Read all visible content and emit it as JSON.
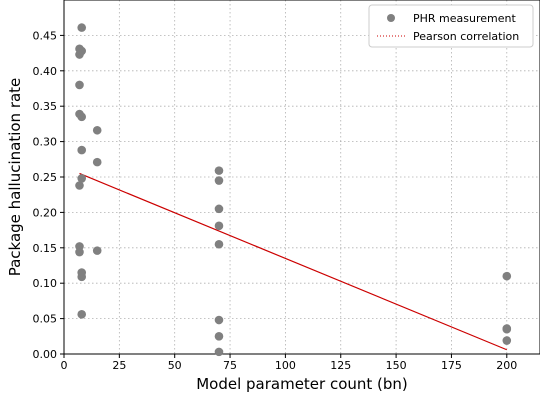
{
  "chart_data": {
    "type": "scatter",
    "xlabel": "Model parameter count (bn)",
    "ylabel": "Package hallucination rate",
    "xlim": [
      0,
      215
    ],
    "ylim": [
      0,
      0.5
    ],
    "xticks": [
      0,
      25,
      50,
      75,
      100,
      125,
      150,
      175,
      200
    ],
    "xtick_labels": [
      "0",
      "25",
      "50",
      "75",
      "100",
      "125",
      "150",
      "175",
      "200"
    ],
    "yticks": [
      0.0,
      0.05,
      0.1,
      0.15,
      0.2,
      0.25,
      0.3,
      0.35,
      0.4,
      0.45
    ],
    "ytick_labels": [
      "0.00",
      "0.05",
      "0.10",
      "0.15",
      "0.20",
      "0.25",
      "0.30",
      "0.35",
      "0.40",
      "0.45"
    ],
    "grid": true,
    "legend_position": "top-right",
    "legend": [
      {
        "label": "PHR measurement",
        "marker": "circle",
        "color": "#808080"
      },
      {
        "label": "Pearson correlation",
        "marker": "dotted-line",
        "color": "#cc0000"
      }
    ],
    "series": [
      {
        "name": "PHR measurement",
        "kind": "scatter",
        "color": "#808080",
        "points": [
          {
            "x": 8,
            "y": 0.461
          },
          {
            "x": 7,
            "y": 0.431
          },
          {
            "x": 8,
            "y": 0.428
          },
          {
            "x": 7,
            "y": 0.423
          },
          {
            "x": 7,
            "y": 0.38
          },
          {
            "x": 7,
            "y": 0.339
          },
          {
            "x": 8,
            "y": 0.335
          },
          {
            "x": 15,
            "y": 0.316
          },
          {
            "x": 8,
            "y": 0.288
          },
          {
            "x": 15,
            "y": 0.271
          },
          {
            "x": 8,
            "y": 0.248
          },
          {
            "x": 7,
            "y": 0.238
          },
          {
            "x": 7,
            "y": 0.152
          },
          {
            "x": 7,
            "y": 0.144
          },
          {
            "x": 15,
            "y": 0.146
          },
          {
            "x": 8,
            "y": 0.115
          },
          {
            "x": 8,
            "y": 0.109
          },
          {
            "x": 8,
            "y": 0.056
          },
          {
            "x": 70,
            "y": 0.259
          },
          {
            "x": 70,
            "y": 0.245
          },
          {
            "x": 70,
            "y": 0.205
          },
          {
            "x": 70,
            "y": 0.181
          },
          {
            "x": 70,
            "y": 0.155
          },
          {
            "x": 70,
            "y": 0.048
          },
          {
            "x": 70,
            "y": 0.025
          },
          {
            "x": 70,
            "y": 0.003
          },
          {
            "x": 200,
            "y": 0.11
          },
          {
            "x": 200,
            "y": 0.036
          },
          {
            "x": 200,
            "y": 0.035
          },
          {
            "x": 200,
            "y": 0.019
          }
        ]
      },
      {
        "name": "Pearson correlation",
        "kind": "line",
        "color": "#cc0000",
        "points": [
          {
            "x": 7,
            "y": 0.255
          },
          {
            "x": 200,
            "y": 0.006
          }
        ]
      }
    ]
  }
}
